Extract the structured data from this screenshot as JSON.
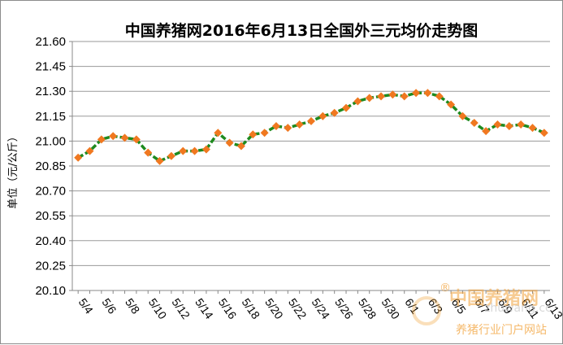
{
  "chart_data": {
    "type": "line",
    "title": "中国养猪网2016年6月13日全国外三元均价走势图",
    "ylabel": "单位（元/公斤）",
    "xlabel": "",
    "ylim": [
      20.1,
      21.6
    ],
    "yticks": [
      "21.60",
      "21.45",
      "21.30",
      "21.15",
      "21.00",
      "20.85",
      "20.70",
      "20.55",
      "20.40",
      "20.25",
      "20.10"
    ],
    "x": [
      "5/4",
      "5/5",
      "5/6",
      "5/7",
      "5/8",
      "5/9",
      "5/10",
      "5/11",
      "5/12",
      "5/13",
      "5/14",
      "5/15",
      "5/16",
      "5/17",
      "5/18",
      "5/19",
      "5/20",
      "5/21",
      "5/22",
      "5/23",
      "5/24",
      "5/25",
      "5/26",
      "5/27",
      "5/28",
      "5/29",
      "5/30",
      "5/31",
      "6/1",
      "6/2",
      "6/3",
      "6/4",
      "6/5",
      "6/6",
      "6/7",
      "6/8",
      "6/9",
      "6/10",
      "6/11",
      "6/12",
      "6/13"
    ],
    "xtick_labels": [
      "5/4",
      "5/6",
      "5/8",
      "5/10",
      "5/12",
      "5/14",
      "5/16",
      "5/18",
      "5/20",
      "5/22",
      "5/24",
      "5/26",
      "5/28",
      "5/30",
      "6/1",
      "6/3",
      "6/5",
      "6/7",
      "6/9",
      "6/11",
      "6/13"
    ],
    "series": [
      {
        "values": [
          20.9,
          20.94,
          21.01,
          21.03,
          21.02,
          21.01,
          20.93,
          20.88,
          20.91,
          20.94,
          20.94,
          20.95,
          21.05,
          20.99,
          20.97,
          21.04,
          21.05,
          21.09,
          21.08,
          21.1,
          21.12,
          21.15,
          21.17,
          21.2,
          21.24,
          21.26,
          21.27,
          21.28,
          21.27,
          21.29,
          21.29,
          21.27,
          21.22,
          21.15,
          21.11,
          21.06,
          21.1,
          21.09,
          21.1,
          21.08,
          21.05
        ],
        "line_color": "#1e8a1e",
        "marker_color": "#f07820"
      }
    ],
    "grid": true
  },
  "watermark": {
    "brand": "中国养猪网",
    "url": "zhuwang.cc",
    "slogan": "养猪行业门户网站",
    "registered": "®"
  }
}
